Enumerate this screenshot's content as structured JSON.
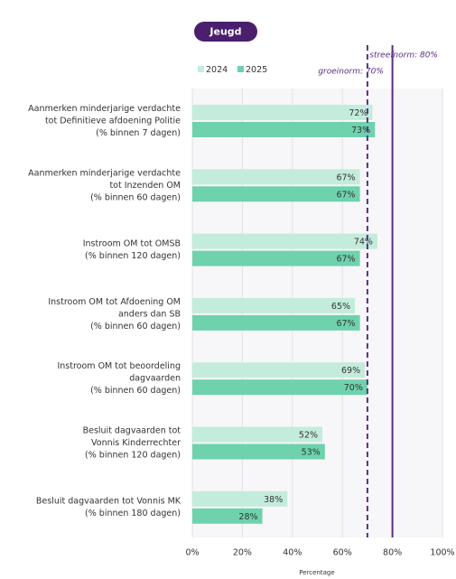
{
  "chart_data": {
    "type": "hbar",
    "badge": "Jeugd",
    "xlabel": "Percentage",
    "categories": [
      [
        "Aanmerken minderjarige verdachte",
        "tot Definitieve afdoening Politie",
        "(% binnen 7 dagen)"
      ],
      [
        "Aanmerken minderjarige verdachte",
        "tot Inzenden OM",
        "(% binnen 60 dagen)"
      ],
      [
        "Instroom OM tot OMSB",
        "(% binnen 120 dagen)"
      ],
      [
        "Instroom OM tot Afdoening OM",
        "anders dan SB",
        "(% binnen 60 dagen)"
      ],
      [
        "Instroom OM tot beoordeling",
        "dagvaarden",
        "(% binnen 60 dagen)"
      ],
      [
        "Besluit dagvaarden tot",
        "Vonnis Kinderrechter",
        "(% binnen 120 dagen)"
      ],
      [
        "Besluit dagvaarden tot Vonnis MK",
        "(% binnen 180 dagen)"
      ]
    ],
    "series": [
      {
        "name": "2024",
        "color": "#c4ecdc",
        "values": [
          72,
          67,
          74,
          65,
          69,
          52,
          38
        ],
        "value_labels": [
          "72%",
          "67%",
          "74%",
          "65%",
          "69%",
          "52%",
          "38%"
        ]
      },
      {
        "name": "2025",
        "color": "#6ed2ad",
        "values": [
          73,
          67,
          67,
          67,
          70,
          53,
          28
        ],
        "value_labels": [
          "73%",
          "67%",
          "67%",
          "67%",
          "70%",
          "53%",
          "28%"
        ]
      }
    ],
    "reference_lines": [
      {
        "label": "streefnorm: 80%",
        "value": 80,
        "style": "solid",
        "color": "#5b2d86"
      },
      {
        "label": "groeinorm: 70%",
        "value": 70,
        "style": "dashed",
        "color": "#5b2d86"
      }
    ],
    "xlim": [
      0,
      100
    ],
    "xticks": [
      {
        "value": 0,
        "label": "0%"
      },
      {
        "value": 20,
        "label": "20%"
      },
      {
        "value": 40,
        "label": "40%"
      },
      {
        "value": 60,
        "label": "60%"
      },
      {
        "value": 80,
        "label": "80%"
      },
      {
        "value": 100,
        "label": "100%"
      }
    ],
    "grid": true
  }
}
